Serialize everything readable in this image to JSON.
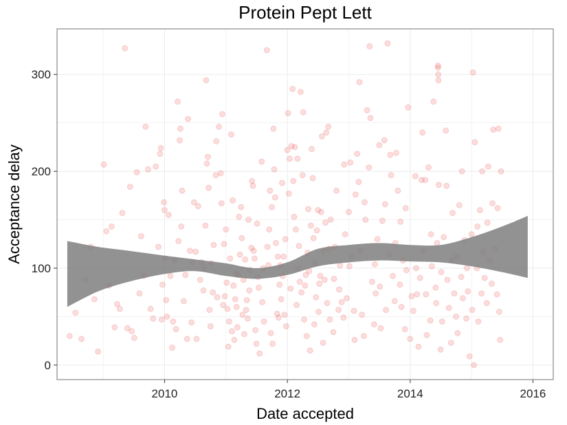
{
  "chart_data": {
    "type": "scatter",
    "title": "Protein Pept Lett",
    "xlabel": "Date accepted",
    "ylabel": "Acceptance delay",
    "xlim": [
      "2008-04-01",
      "2016-05-01"
    ],
    "ylim": [
      -15,
      347
    ],
    "x_ticks": [
      "2010",
      "2012",
      "2014",
      "2016"
    ],
    "y_ticks": [
      "0",
      "100",
      "200",
      "300"
    ],
    "grid": true,
    "colors": {
      "point": "#e31a1c",
      "smooth_band": "#7f7f7f",
      "grid": "#ebebeb",
      "panel_border": "#888888"
    },
    "point_alpha": 0.15,
    "points": [
      [
        "2008-06-15",
        30
      ],
      [
        "2008-07-20",
        54
      ],
      [
        "2008-08-25",
        27
      ],
      [
        "2008-09-20",
        88
      ],
      [
        "2008-10-20",
        122
      ],
      [
        "2008-11-10",
        68
      ],
      [
        "2008-12-01",
        14
      ],
      [
        "2009-01-05",
        207
      ],
      [
        "2009-01-20",
        138
      ],
      [
        "2009-02-05",
        82
      ],
      [
        "2009-02-20",
        143
      ],
      [
        "2009-03-10",
        39
      ],
      [
        "2009-03-25",
        63
      ],
      [
        "2009-04-10",
        58
      ],
      [
        "2009-04-25",
        157
      ],
      [
        "2009-05-10",
        327
      ],
      [
        "2009-05-25",
        38
      ],
      [
        "2009-06-10",
        184
      ],
      [
        "2009-06-20",
        35
      ],
      [
        "2009-07-05",
        28
      ],
      [
        "2009-07-20",
        199
      ],
      [
        "2009-08-05",
        74
      ],
      [
        "2009-08-15",
        133
      ],
      [
        "2009-09-01",
        92
      ],
      [
        "2009-09-10",
        246
      ],
      [
        "2009-09-25",
        202
      ],
      [
        "2009-10-10",
        58
      ],
      [
        "2009-10-25",
        48
      ],
      [
        "2009-11-10",
        205
      ],
      [
        "2009-11-25",
        122
      ],
      [
        "2009-12-05",
        218
      ],
      [
        "2009-12-10",
        224
      ],
      [
        "2009-12-15",
        47
      ],
      [
        "2009-12-20",
        83
      ],
      [
        "2009-12-28",
        168
      ],
      [
        "2010-01-01",
        160
      ],
      [
        "2010-01-05",
        110
      ],
      [
        "2010-01-10",
        67
      ],
      [
        "2010-01-15",
        50
      ],
      [
        "2010-01-25",
        155
      ],
      [
        "2010-02-05",
        92
      ],
      [
        "2010-02-15",
        18
      ],
      [
        "2010-02-20",
        45
      ],
      [
        "2010-03-01",
        108
      ],
      [
        "2010-03-10",
        37
      ],
      [
        "2010-03-20",
        272
      ],
      [
        "2010-03-25",
        128
      ],
      [
        "2010-04-01",
        232
      ],
      [
        "2010-04-05",
        244
      ],
      [
        "2010-04-10",
        143
      ],
      [
        "2010-04-15",
        180
      ],
      [
        "2010-04-25",
        66
      ],
      [
        "2010-05-05",
        93
      ],
      [
        "2010-05-15",
        27
      ],
      [
        "2010-05-20",
        254
      ],
      [
        "2010-06-01",
        118
      ],
      [
        "2010-06-10",
        44
      ],
      [
        "2010-06-15",
        106
      ],
      [
        "2010-06-25",
        168
      ],
      [
        "2010-07-05",
        117
      ],
      [
        "2010-07-10",
        27
      ],
      [
        "2010-07-20",
        164
      ],
      [
        "2010-08-01",
        88
      ],
      [
        "2010-08-10",
        106
      ],
      [
        "2010-08-20",
        77
      ],
      [
        "2010-08-25",
        100
      ],
      [
        "2010-09-01",
        144
      ],
      [
        "2010-09-05",
        294
      ],
      [
        "2010-09-10",
        208
      ],
      [
        "2010-09-15",
        215
      ],
      [
        "2010-09-20",
        183
      ],
      [
        "2010-09-25",
        57
      ],
      [
        "2010-10-01",
        40
      ],
      [
        "2010-10-05",
        105
      ],
      [
        "2010-10-15",
        75
      ],
      [
        "2010-10-20",
        124
      ],
      [
        "2010-11-01",
        196
      ],
      [
        "2010-11-05",
        231
      ],
      [
        "2010-11-10",
        70
      ],
      [
        "2010-11-20",
        246
      ],
      [
        "2010-12-01",
        198
      ],
      [
        "2010-12-05",
        167
      ],
      [
        "2010-12-10",
        259
      ],
      [
        "2010-12-15",
        62
      ],
      [
        "2010-12-20",
        125
      ],
      [
        "2010-12-25",
        71
      ],
      [
        "2011-01-01",
        140
      ],
      [
        "2011-01-05",
        85
      ],
      [
        "2011-01-10",
        58
      ],
      [
        "2011-01-15",
        19
      ],
      [
        "2011-01-20",
        45
      ],
      [
        "2011-01-25",
        110
      ],
      [
        "2011-02-01",
        238
      ],
      [
        "2011-02-05",
        35
      ],
      [
        "2011-02-10",
        170
      ],
      [
        "2011-02-15",
        82
      ],
      [
        "2011-02-20",
        26
      ],
      [
        "2011-02-25",
        68
      ],
      [
        "2011-03-01",
        95
      ],
      [
        "2011-03-05",
        60
      ],
      [
        "2011-03-10",
        39
      ],
      [
        "2011-03-15",
        93
      ],
      [
        "2011-03-20",
        153
      ],
      [
        "2011-03-25",
        114
      ],
      [
        "2011-04-01",
        163
      ],
      [
        "2011-04-05",
        131
      ],
      [
        "2011-04-10",
        52
      ],
      [
        "2011-04-15",
        88
      ],
      [
        "2011-04-20",
        32
      ],
      [
        "2011-04-25",
        109
      ],
      [
        "2011-05-01",
        57
      ],
      [
        "2011-05-05",
        67
      ],
      [
        "2011-05-10",
        48
      ],
      [
        "2011-05-15",
        150
      ],
      [
        "2011-05-20",
        77
      ],
      [
        "2011-05-25",
        98
      ],
      [
        "2011-06-01",
        121
      ],
      [
        "2011-06-05",
        190
      ],
      [
        "2011-06-10",
        185
      ],
      [
        "2011-06-15",
        118
      ],
      [
        "2011-06-20",
        110
      ],
      [
        "2011-06-25",
        36
      ],
      [
        "2011-07-01",
        22
      ],
      [
        "2011-07-05",
        146
      ],
      [
        "2011-07-10",
        91
      ],
      [
        "2011-07-15",
        80
      ],
      [
        "2011-07-20",
        12
      ],
      [
        "2011-08-01",
        210
      ],
      [
        "2011-08-05",
        65
      ],
      [
        "2011-08-10",
        100
      ],
      [
        "2011-08-15",
        45
      ],
      [
        "2011-09-01",
        325
      ],
      [
        "2011-09-05",
        122
      ],
      [
        "2011-09-10",
        103
      ],
      [
        "2011-09-15",
        140
      ],
      [
        "2011-09-20",
        180
      ],
      [
        "2011-09-25",
        33
      ],
      [
        "2011-10-01",
        163
      ],
      [
        "2011-10-05",
        22
      ],
      [
        "2011-10-10",
        244
      ],
      [
        "2011-10-15",
        202
      ],
      [
        "2011-10-20",
        173
      ],
      [
        "2011-10-25",
        126
      ],
      [
        "2011-11-01",
        53
      ],
      [
        "2011-11-05",
        112
      ],
      [
        "2011-11-10",
        49
      ],
      [
        "2011-11-15",
        83
      ],
      [
        "2011-11-20",
        103
      ],
      [
        "2011-11-25",
        68
      ],
      [
        "2011-12-01",
        188
      ],
      [
        "2011-12-05",
        92
      ],
      [
        "2011-12-10",
        112
      ],
      [
        "2011-12-15",
        52
      ],
      [
        "2011-12-20",
        130
      ],
      [
        "2011-12-25",
        40
      ],
      [
        "2012-01-01",
        222
      ],
      [
        "2012-01-05",
        260
      ],
      [
        "2012-01-10",
        177
      ],
      [
        "2012-01-15",
        213
      ],
      [
        "2012-01-20",
        79
      ],
      [
        "2012-01-25",
        226
      ],
      [
        "2012-02-01",
        285
      ],
      [
        "2012-02-05",
        190
      ],
      [
        "2012-02-10",
        153
      ],
      [
        "2012-02-15",
        225
      ],
      [
        "2012-02-20",
        140
      ],
      [
        "2012-02-25",
        62
      ],
      [
        "2012-03-01",
        213
      ],
      [
        "2012-03-05",
        100
      ],
      [
        "2012-03-10",
        123
      ],
      [
        "2012-03-15",
        86
      ],
      [
        "2012-03-20",
        282
      ],
      [
        "2012-03-25",
        75
      ],
      [
        "2012-04-01",
        196
      ],
      [
        "2012-04-05",
        261
      ],
      [
        "2012-04-10",
        47
      ],
      [
        "2012-04-15",
        82
      ],
      [
        "2012-04-20",
        93
      ],
      [
        "2012-04-25",
        30
      ],
      [
        "2012-05-01",
        116
      ],
      [
        "2012-05-05",
        161
      ],
      [
        "2012-05-10",
        97
      ],
      [
        "2012-05-15",
        15
      ],
      [
        "2012-05-20",
        144
      ],
      [
        "2012-05-25",
        223
      ],
      [
        "2012-06-01",
        193
      ],
      [
        "2012-06-05",
        131
      ],
      [
        "2012-06-10",
        42
      ],
      [
        "2012-06-15",
        105
      ],
      [
        "2012-06-20",
        70
      ],
      [
        "2012-06-25",
        139
      ],
      [
        "2012-07-01",
        160
      ],
      [
        "2012-07-05",
        55
      ],
      [
        "2012-07-10",
        84
      ],
      [
        "2012-07-15",
        92
      ],
      [
        "2012-07-20",
        158
      ],
      [
        "2012-07-25",
        236
      ],
      [
        "2012-08-01",
        23
      ],
      [
        "2012-08-05",
        118
      ],
      [
        "2012-08-10",
        88
      ],
      [
        "2012-08-15",
        147
      ],
      [
        "2012-08-20",
        240
      ],
      [
        "2012-08-25",
        64
      ],
      [
        "2012-09-01",
        246
      ],
      [
        "2012-09-05",
        120
      ],
      [
        "2012-09-10",
        47
      ],
      [
        "2012-09-15",
        150
      ],
      [
        "2012-10-01",
        34
      ],
      [
        "2012-10-05",
        89
      ],
      [
        "2012-10-10",
        122
      ],
      [
        "2012-10-20",
        180
      ],
      [
        "2012-11-01",
        57
      ],
      [
        "2012-11-05",
        78
      ],
      [
        "2012-11-10",
        103
      ],
      [
        "2012-11-20",
        65
      ],
      [
        "2012-12-01",
        49
      ],
      [
        "2012-12-05",
        207
      ],
      [
        "2012-12-10",
        135
      ],
      [
        "2012-12-20",
        69
      ],
      [
        "2013-01-01",
        158
      ],
      [
        "2013-01-05",
        102
      ],
      [
        "2013-01-10",
        209
      ],
      [
        "2013-01-20",
        112
      ],
      [
        "2013-02-01",
        56
      ],
      [
        "2013-02-05",
        26
      ],
      [
        "2013-02-10",
        176
      ],
      [
        "2013-02-20",
        218
      ],
      [
        "2013-03-01",
        189
      ],
      [
        "2013-03-05",
        292
      ],
      [
        "2013-03-10",
        118
      ],
      [
        "2013-03-20",
        52
      ],
      [
        "2013-04-01",
        30
      ],
      [
        "2013-04-05",
        168
      ],
      [
        "2013-04-10",
        150
      ],
      [
        "2013-04-20",
        263
      ],
      [
        "2013-05-01",
        204
      ],
      [
        "2013-05-05",
        329
      ],
      [
        "2013-05-10",
        255
      ],
      [
        "2013-05-20",
        86
      ],
      [
        "2013-06-01",
        42
      ],
      [
        "2013-06-05",
        104
      ],
      [
        "2013-06-10",
        74
      ],
      [
        "2013-06-20",
        130
      ],
      [
        "2013-07-01",
        227
      ],
      [
        "2013-07-05",
        81
      ],
      [
        "2013-07-10",
        38
      ],
      [
        "2013-07-20",
        149
      ],
      [
        "2013-08-01",
        232
      ],
      [
        "2013-08-05",
        166
      ],
      [
        "2013-08-10",
        57
      ],
      [
        "2013-08-20",
        332
      ],
      [
        "2013-09-01",
        114
      ],
      [
        "2013-09-05",
        217
      ],
      [
        "2013-09-10",
        196
      ],
      [
        "2013-09-20",
        92
      ],
      [
        "2013-10-01",
        66
      ],
      [
        "2013-10-05",
        126
      ],
      [
        "2013-10-10",
        219
      ],
      [
        "2013-10-20",
        180
      ],
      [
        "2013-11-01",
        83
      ],
      [
        "2013-11-05",
        148
      ],
      [
        "2013-11-10",
        60
      ],
      [
        "2013-11-20",
        108
      ],
      [
        "2013-12-01",
        37
      ],
      [
        "2013-12-05",
        162
      ],
      [
        "2013-12-10",
        98
      ],
      [
        "2013-12-20",
        266
      ],
      [
        "2014-01-01",
        27
      ],
      [
        "2014-01-10",
        71
      ],
      [
        "2014-01-20",
        56
      ],
      [
        "2014-02-01",
        195
      ],
      [
        "2014-02-05",
        100
      ],
      [
        "2014-02-10",
        73
      ],
      [
        "2014-02-20",
        19
      ],
      [
        "2014-03-01",
        90
      ],
      [
        "2014-03-10",
        191
      ],
      [
        "2014-03-15",
        240
      ],
      [
        "2014-03-20",
        118
      ],
      [
        "2014-04-01",
        191
      ],
      [
        "2014-04-05",
        73
      ],
      [
        "2014-04-10",
        31
      ],
      [
        "2014-04-20",
        204
      ],
      [
        "2014-05-01",
        46
      ],
      [
        "2014-05-05",
        135
      ],
      [
        "2014-05-10",
        102
      ],
      [
        "2014-05-20",
        272
      ],
      [
        "2014-06-01",
        80
      ],
      [
        "2014-06-05",
        64
      ],
      [
        "2014-06-10",
        126
      ],
      [
        "2014-06-15",
        309
      ],
      [
        "2014-06-16",
        307
      ],
      [
        "2014-06-17",
        300
      ],
      [
        "2014-06-18",
        294
      ],
      [
        "2014-06-20",
        186
      ],
      [
        "2014-07-01",
        16
      ],
      [
        "2014-07-05",
        96
      ],
      [
        "2014-07-10",
        45
      ],
      [
        "2014-07-20",
        132
      ],
      [
        "2014-08-01",
        242
      ],
      [
        "2014-08-05",
        185
      ],
      [
        "2014-08-10",
        88
      ],
      [
        "2014-08-20",
        59
      ],
      [
        "2014-09-01",
        23
      ],
      [
        "2014-09-05",
        108
      ],
      [
        "2014-09-10",
        157
      ],
      [
        "2014-09-20",
        74
      ],
      [
        "2014-10-01",
        50
      ],
      [
        "2014-10-05",
        112
      ],
      [
        "2014-10-10",
        33
      ],
      [
        "2014-10-20",
        165
      ],
      [
        "2014-11-01",
        91
      ],
      [
        "2014-11-05",
        200
      ],
      [
        "2014-11-10",
        69
      ],
      [
        "2014-11-20",
        129
      ],
      [
        "2014-12-01",
        48
      ],
      [
        "2014-12-05",
        100
      ],
      [
        "2014-12-10",
        76
      ],
      [
        "2014-12-20",
        9
      ],
      [
        "2015-01-01",
        135
      ],
      [
        "2015-01-05",
        57
      ],
      [
        "2015-01-10",
        302
      ],
      [
        "2015-01-15",
        0
      ],
      [
        "2015-01-20",
        230
      ],
      [
        "2015-02-01",
        100
      ],
      [
        "2015-02-05",
        143
      ],
      [
        "2015-02-10",
        45
      ],
      [
        "2015-02-20",
        160
      ],
      [
        "2015-03-01",
        74
      ],
      [
        "2015-03-05",
        200
      ],
      [
        "2015-03-10",
        117
      ],
      [
        "2015-03-20",
        90
      ],
      [
        "2015-04-01",
        64
      ],
      [
        "2015-04-05",
        147
      ],
      [
        "2015-04-10",
        205
      ],
      [
        "2015-04-20",
        108
      ],
      [
        "2015-05-01",
        84
      ],
      [
        "2015-05-05",
        167
      ],
      [
        "2015-05-10",
        243
      ],
      [
        "2015-05-20",
        120
      ],
      [
        "2015-06-01",
        73
      ],
      [
        "2015-06-05",
        162
      ],
      [
        "2015-06-10",
        244
      ],
      [
        "2015-06-15",
        55
      ],
      [
        "2015-06-20",
        26
      ],
      [
        "2015-06-25",
        200
      ]
    ],
    "smooth_band": [
      {
        "x": "2008-06-01",
        "lower": 60,
        "upper": 128
      },
      {
        "x": "2008-12-01",
        "lower": 76,
        "upper": 122
      },
      {
        "x": "2009-06-01",
        "lower": 86,
        "upper": 118
      },
      {
        "x": "2010-01-01",
        "lower": 94,
        "upper": 113
      },
      {
        "x": "2010-07-01",
        "lower": 97,
        "upper": 109
      },
      {
        "x": "2011-01-01",
        "lower": 92,
        "upper": 105
      },
      {
        "x": "2011-07-01",
        "lower": 89,
        "upper": 100
      },
      {
        "x": "2012-01-01",
        "lower": 93,
        "upper": 106
      },
      {
        "x": "2012-07-01",
        "lower": 102,
        "upper": 120
      },
      {
        "x": "2013-01-01",
        "lower": 106,
        "upper": 124
      },
      {
        "x": "2013-07-01",
        "lower": 108,
        "upper": 126
      },
      {
        "x": "2014-01-01",
        "lower": 107,
        "upper": 124
      },
      {
        "x": "2014-07-01",
        "lower": 106,
        "upper": 124
      },
      {
        "x": "2015-01-01",
        "lower": 102,
        "upper": 132
      },
      {
        "x": "2015-07-01",
        "lower": 96,
        "upper": 143
      },
      {
        "x": "2015-12-01",
        "lower": 90,
        "upper": 154
      }
    ]
  }
}
